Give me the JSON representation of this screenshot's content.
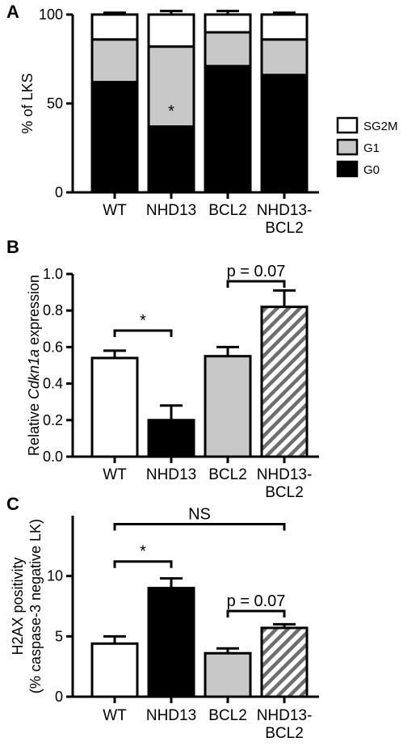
{
  "chart_data": [
    {
      "panel": "A",
      "type": "bar",
      "stacked": true,
      "ylabel": "% of LKS",
      "ylim": [
        0,
        100
      ],
      "yticks": [
        "0",
        "50",
        "100"
      ],
      "categories": [
        "WT",
        "NHD13",
        "BCL2",
        "NHD13-BCL2"
      ],
      "category_lines": [
        [
          "WT"
        ],
        [
          "NHD13"
        ],
        [
          "BCL2"
        ],
        [
          "NHD13-",
          "BCL2"
        ]
      ],
      "series": [
        {
          "name": "G0",
          "values": [
            62,
            37,
            71,
            66
          ],
          "err": [
            3,
            3,
            8,
            2
          ],
          "color": "#000000"
        },
        {
          "name": "G1",
          "values": [
            24,
            45,
            19,
            20
          ],
          "err": [
            2,
            2,
            2,
            2
          ],
          "color": "#c8c8c8"
        },
        {
          "name": "SG2M",
          "values": [
            14,
            18,
            10,
            14
          ],
          "err": [
            1,
            2,
            2,
            1
          ],
          "color": "#ffffff"
        }
      ],
      "legend_order": [
        "SG2M",
        "G1",
        "G0"
      ],
      "legend_position": "right",
      "annotations": [
        {
          "text": "*",
          "category": "NHD13"
        }
      ]
    },
    {
      "panel": "B",
      "type": "bar",
      "ylabel_prefix": "Relative ",
      "ylabel_italic": "Cdkn1a",
      "ylabel_suffix": " expression",
      "ylim": [
        0,
        1.0
      ],
      "yticks": [
        "0.0",
        "0.2",
        "0.4",
        "0.6",
        "0.8",
        "1.0"
      ],
      "categories": [
        "WT",
        "NHD13",
        "BCL2",
        "NHD13-BCL2"
      ],
      "category_lines": [
        [
          "WT"
        ],
        [
          "NHD13"
        ],
        [
          "BCL2"
        ],
        [
          "NHD13-",
          "BCL2"
        ]
      ],
      "values": [
        0.54,
        0.2,
        0.55,
        0.82
      ],
      "err": [
        0.04,
        0.08,
        0.05,
        0.09
      ],
      "fills": [
        "white",
        "black",
        "gray",
        "hatch"
      ],
      "brackets": [
        {
          "from": 0,
          "to": 1,
          "label": "*",
          "y": 0.69
        },
        {
          "from": 2,
          "to": 3,
          "label": "p = 0.07",
          "y": 0.96
        }
      ]
    },
    {
      "panel": "C",
      "type": "bar",
      "ylabel_line1": "H2AX positivity",
      "ylabel_line2": "(% caspase-3 negative LK)",
      "ylim": [
        0,
        15
      ],
      "yticks": [
        "0",
        "5",
        "10"
      ],
      "categories": [
        "WT",
        "NHD13",
        "BCL2",
        "NHD13-BCL2"
      ],
      "category_lines": [
        [
          "WT"
        ],
        [
          "NHD13"
        ],
        [
          "BCL2"
        ],
        [
          "NHD13-",
          "BCL2"
        ]
      ],
      "values": [
        4.4,
        9.0,
        3.6,
        5.7
      ],
      "err": [
        0.6,
        0.8,
        0.4,
        0.3
      ],
      "fills": [
        "white",
        "black",
        "gray",
        "hatch"
      ],
      "brackets": [
        {
          "from": 0,
          "to": 3,
          "label": "NS",
          "y": 14.3
        },
        {
          "from": 0,
          "to": 1,
          "label": "*",
          "y": 11.2
        },
        {
          "from": 2,
          "to": 3,
          "label": "p = 0.07",
          "y": 7.1
        }
      ]
    }
  ]
}
